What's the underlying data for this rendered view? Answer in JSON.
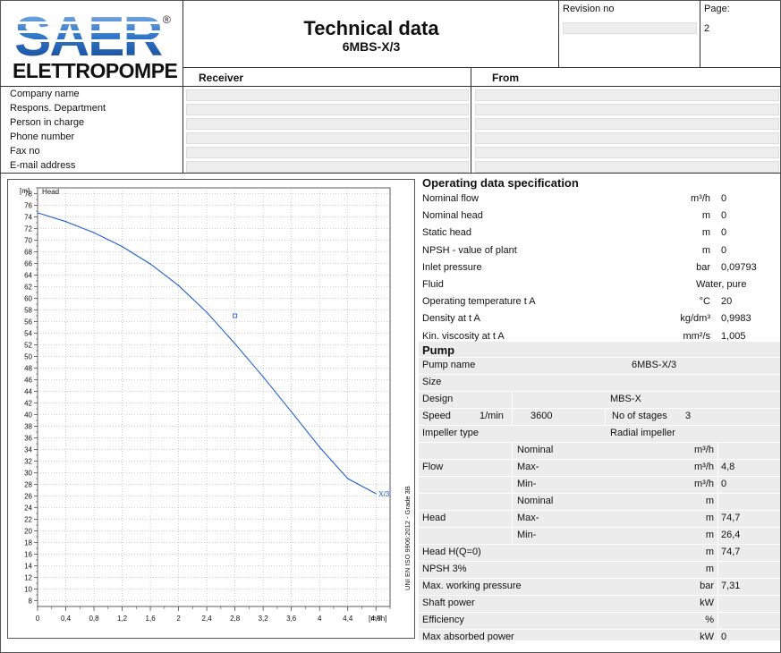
{
  "header": {
    "logo_word": "SAER",
    "logo_registered": "®",
    "logo_sub": "ELETTROPOMPE",
    "title": "Technical data",
    "subtitle": "6MBS-X/3",
    "revision_label": "Revision no",
    "page_label": "Page:",
    "page_value": "2"
  },
  "contact": {
    "receiver_label": "Receiver",
    "from_label": "From",
    "fields": [
      "Company name",
      "Respons. Department",
      "Person in charge",
      "Phone number",
      "Fax no",
      "E-mail address"
    ]
  },
  "operating": {
    "heading": "Operating data specification",
    "rows": [
      {
        "label": "Nominal flow",
        "unit": "m³/h",
        "value": "0"
      },
      {
        "label": "Nominal head",
        "unit": "m",
        "value": "0"
      },
      {
        "label": "Static head",
        "unit": "m",
        "value": "0"
      },
      {
        "label": "NPSH - value of plant",
        "unit": "m",
        "value": "0"
      },
      {
        "label": "Inlet pressure",
        "unit": "bar",
        "value": "0,09793"
      },
      {
        "label": "Fluid",
        "unit": "",
        "value": "Water, pure"
      },
      {
        "label": "Operating temperature t A",
        "unit": "°C",
        "value": "20"
      },
      {
        "label": "Density at t A",
        "unit": "kg/dm³",
        "value": "0,9983"
      },
      {
        "label": "Kin. viscosity at t A",
        "unit": "mm²/s",
        "value": "1,005"
      }
    ]
  },
  "pump": {
    "heading": "Pump",
    "pump_name_label": "Pump name",
    "pump_name": "6MBS-X/3",
    "size_label": "Size",
    "design_label": "Design",
    "design": "MBS-X",
    "speed_label": "Speed",
    "speed_unit": "1/min",
    "speed": "3600",
    "stages_label": "No of stages",
    "stages": "3",
    "impeller_label": "Impeller type",
    "impeller": "Radial impeller",
    "flow_label": "Flow",
    "head_label": "Head",
    "flow_rows": [
      {
        "label": "Nominal",
        "unit": "m³/h",
        "value": ""
      },
      {
        "label": "Max-",
        "unit": "m³/h",
        "value": "4,8"
      },
      {
        "label": "Min-",
        "unit": "m³/h",
        "value": "0"
      }
    ],
    "head_rows": [
      {
        "label": "Nominal",
        "unit": "m",
        "value": ""
      },
      {
        "label": "Max-",
        "unit": "m",
        "value": "74,7"
      },
      {
        "label": "Min-",
        "unit": "m",
        "value": "26,4"
      }
    ],
    "rows": [
      {
        "label": "Head H(Q=0)",
        "unit": "m",
        "value": "74,7"
      },
      {
        "label": "NPSH 3%",
        "unit": "m",
        "value": ""
      },
      {
        "label": "Max. working pressure",
        "unit": "bar",
        "value": "7,31"
      },
      {
        "label": "Shaft power",
        "unit": "kW",
        "value": ""
      },
      {
        "label": "Efficiency",
        "unit": "%",
        "value": ""
      },
      {
        "label": "Max absorbed power",
        "unit": "kW",
        "value": "0"
      }
    ]
  },
  "chart_data": {
    "type": "line",
    "ylabel": "[m]",
    "series_label": "Head",
    "xlabel": "[m³/h]",
    "curve_label": "X/3.",
    "side_note": "UNI EN ISO 9906:2012 - Grade 3B",
    "xlim": [
      0,
      5.0
    ],
    "ylim": [
      7,
      79
    ],
    "x_ticks": [
      "0",
      "0,4",
      "0,8",
      "1,2",
      "1,6",
      "2",
      "2,4",
      "2,8",
      "3,2",
      "3,6",
      "4",
      "4,4",
      "4,8"
    ],
    "y_ticks": [
      "8",
      "10",
      "12",
      "14",
      "16",
      "18",
      "20",
      "22",
      "24",
      "26",
      "28",
      "30",
      "32",
      "34",
      "36",
      "38",
      "40",
      "42",
      "44",
      "46",
      "48",
      "50",
      "52",
      "54",
      "56",
      "58",
      "60",
      "62",
      "64",
      "66",
      "68",
      "70",
      "72",
      "74",
      "76",
      "78"
    ],
    "series": [
      {
        "x": [
          0,
          0.4,
          0.8,
          1.2,
          1.6,
          2.0,
          2.4,
          2.8,
          3.2,
          3.6,
          4.0,
          4.4,
          4.8
        ],
        "y": [
          74.7,
          73.2,
          71.3,
          68.9,
          65.9,
          62.2,
          57.6,
          52.2,
          46.5,
          40.5,
          34.4,
          29.0,
          26.4
        ]
      }
    ],
    "marker": {
      "x": 2.8,
      "y": 57.0
    },
    "color": "#1f5fd6"
  }
}
